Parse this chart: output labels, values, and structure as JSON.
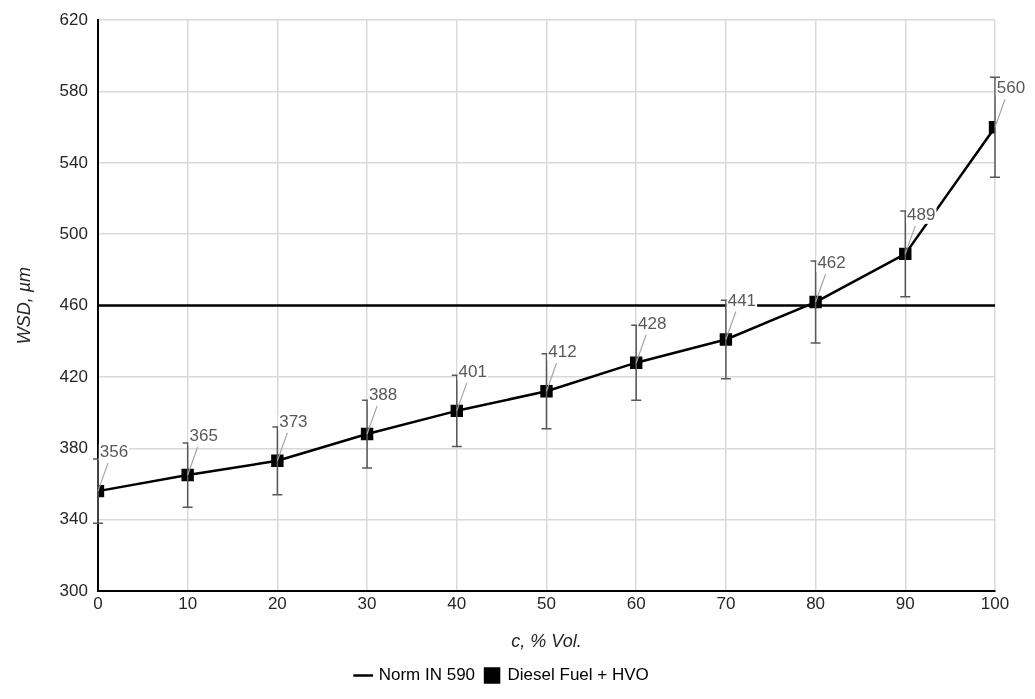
{
  "chart_data": {
    "type": "line",
    "xlabel": "c, % Vol.",
    "ylabel": "WSD, µm",
    "xlim": [
      0,
      100
    ],
    "xticks": [
      0,
      10,
      20,
      30,
      40,
      50,
      60,
      70,
      80,
      90,
      100
    ],
    "ylim": [
      300,
      620
    ],
    "yticks": [
      300,
      340,
      380,
      420,
      460,
      500,
      540,
      580,
      620
    ],
    "grid": true,
    "legend": "bottom",
    "series": [
      {
        "name": "Norm IN 590",
        "color": "#000000",
        "x": [
          0,
          100
        ],
        "values": [
          460,
          460
        ],
        "marker": "none"
      },
      {
        "name": "Diesel Fuel + HVO",
        "color": "#000000",
        "x": [
          0,
          10,
          20,
          30,
          40,
          50,
          60,
          70,
          80,
          90,
          100
        ],
        "values": [
          356,
          365,
          373,
          388,
          401,
          412,
          428,
          441,
          462,
          489,
          560
        ],
        "errors": [
          18,
          18,
          19,
          19,
          20,
          21,
          21,
          22,
          23,
          24,
          28
        ],
        "marker": "square",
        "data_labels": true
      }
    ]
  }
}
